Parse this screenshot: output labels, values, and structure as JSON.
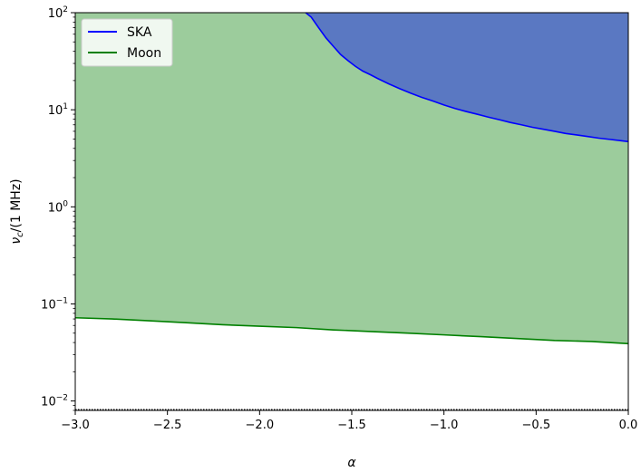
{
  "chart_data": {
    "type": "area",
    "xlabel": "α",
    "ylabel": "ν_c/(1 MHz)",
    "xlim": [
      -3.0,
      0.0
    ],
    "ylim": [
      0.008,
      100
    ],
    "yscale": "log",
    "x_ticks": [
      -3.0,
      -2.5,
      -2.0,
      -1.5,
      -1.0,
      -0.5,
      0.0
    ],
    "x_tick_labels": [
      "−3.0",
      "−2.5",
      "−2.0",
      "−1.5",
      "−1.0",
      "−0.5",
      "0.0"
    ],
    "y_ticks": [
      {
        "value": 0.01,
        "base": "10",
        "exp": "−2"
      },
      {
        "value": 0.1,
        "base": "10",
        "exp": "−1"
      },
      {
        "value": 1,
        "base": "10",
        "exp": "0"
      },
      {
        "value": 10,
        "base": "10",
        "exp": "1"
      },
      {
        "value": 100,
        "base": "10",
        "exp": "2"
      }
    ],
    "grid": false,
    "legend_position": "top-left",
    "series": [
      {
        "name": "SKA",
        "line_color": "#0000ff",
        "fill_color": "#5a78c2",
        "fill": "above",
        "x": [
          -1.75,
          -1.72,
          -1.68,
          -1.64,
          -1.6,
          -1.56,
          -1.52,
          -1.48,
          -1.44,
          -1.4,
          -1.36,
          -1.3,
          -1.24,
          -1.18,
          -1.12,
          -1.06,
          -1.0,
          -0.94,
          -0.88,
          -0.82,
          -0.76,
          -0.7,
          -0.64,
          -0.58,
          -0.52,
          -0.46,
          -0.4,
          -0.34,
          -0.28,
          -0.22,
          -0.16,
          -0.1,
          -0.04,
          0.0
        ],
        "y": [
          100,
          90,
          70,
          55,
          45,
          37,
          32,
          28,
          25,
          23,
          21,
          18.5,
          16.5,
          14.8,
          13.4,
          12.3,
          11.2,
          10.3,
          9.6,
          9.0,
          8.4,
          7.9,
          7.4,
          7.0,
          6.6,
          6.3,
          6.0,
          5.7,
          5.5,
          5.3,
          5.1,
          4.95,
          4.8,
          4.7
        ]
      },
      {
        "name": "Moon",
        "line_color": "#008000",
        "fill_color": "#9ccc9c",
        "fill": "above",
        "x": [
          -3.0,
          -2.8,
          -2.6,
          -2.4,
          -2.2,
          -2.0,
          -1.8,
          -1.6,
          -1.4,
          -1.2,
          -1.0,
          -0.8,
          -0.6,
          -0.4,
          -0.2,
          0.0
        ],
        "y": [
          0.072,
          0.07,
          0.067,
          0.064,
          0.061,
          0.059,
          0.057,
          0.054,
          0.052,
          0.05,
          0.048,
          0.046,
          0.044,
          0.042,
          0.041,
          0.039
        ]
      }
    ]
  }
}
